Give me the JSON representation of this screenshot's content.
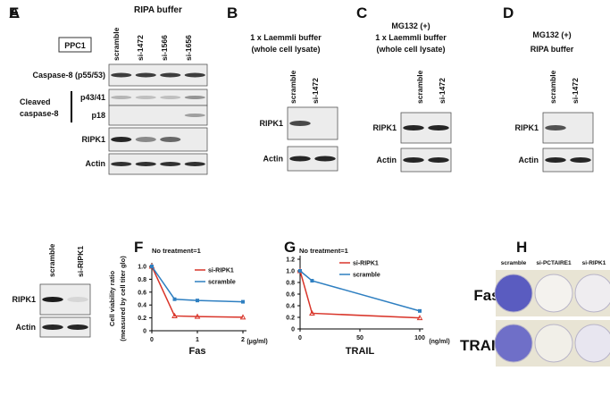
{
  "panels": {
    "A": {
      "label": "A",
      "title": "RIPA buffer",
      "cell_line": "PPC1",
      "lanes": [
        "scramble",
        "si-1472",
        "si-1566",
        "si-1656"
      ],
      "rows": [
        "Caspase-8 (p55/53)",
        "p43/41",
        "p18",
        "RIPK1",
        "Actin"
      ],
      "group_label": [
        "Cleaved",
        "caspase-8"
      ]
    },
    "B": {
      "label": "B",
      "title": [
        "1 x Laemmli buffer",
        "(whole cell lysate)"
      ],
      "lanes": [
        "scramble",
        "si-1472"
      ],
      "rows": [
        "RIPK1",
        "Actin"
      ]
    },
    "C": {
      "label": "C",
      "title": [
        "MG132 (+)",
        "1 x Laemmli buffer",
        "(whole cell lysate)"
      ],
      "lanes": [
        "scramble",
        "si-1472"
      ],
      "rows": [
        "RIPK1",
        "Actin"
      ]
    },
    "D": {
      "label": "D",
      "title": [
        "MG132 (+)",
        "RIPA buffer"
      ],
      "lanes": [
        "scramble",
        "si-1472"
      ],
      "rows": [
        "RIPK1",
        "Actin"
      ]
    },
    "E": {
      "label": "E",
      "lanes": [
        "scramble",
        "si-RIPK1"
      ],
      "rows": [
        "RIPK1",
        "Actin"
      ]
    },
    "H": {
      "label": "H",
      "columns": [
        "scramble",
        "si-PCTAIRE1",
        "si-RIPK1"
      ],
      "rows": [
        "Fas",
        "TRAIL"
      ]
    }
  },
  "chart_data": [
    {
      "type": "line",
      "panel_label": "F",
      "annotation": "No treatment=1",
      "xlabel": "Fas",
      "x_unit": "(μg/ml)",
      "ylabel": [
        "Cell viability ratio",
        "(measured by cell titer glo)"
      ],
      "x": [
        0,
        0.5,
        1,
        2
      ],
      "xlim": [
        0,
        2
      ],
      "xticks": [
        0,
        1,
        2
      ],
      "ylim": [
        0,
        1
      ],
      "yticks": [
        0,
        0.2,
        0.4,
        0.6,
        0.8,
        {
          "value": 1,
          "label": "1.0"
        }
      ],
      "series": [
        {
          "name": "si-RIPK1",
          "color": "#d9352a",
          "values": [
            1,
            0.23,
            0.22,
            0.21
          ]
        },
        {
          "name": "scramble",
          "color": "#2e7fc1",
          "values": [
            1,
            0.49,
            0.47,
            0.45
          ]
        }
      ]
    },
    {
      "type": "line",
      "panel_label": "G",
      "annotation": "No treatment=1",
      "xlabel": "TRAIL",
      "x_unit": "(ng/ml)",
      "x": [
        0,
        10,
        100
      ],
      "xlim": [
        0,
        100
      ],
      "xticks": [
        0,
        50,
        100
      ],
      "ylim": [
        0,
        1.2
      ],
      "yticks": [
        0,
        0.2,
        0.4,
        0.6,
        0.8,
        {
          "value": 1,
          "label": "1.0"
        },
        1.2
      ],
      "series": [
        {
          "name": "si-RIPK1",
          "color": "#d9352a",
          "values": [
            1,
            0.27,
            0.19
          ]
        },
        {
          "name": "scramble",
          "color": "#2e7fc1",
          "values": [
            1,
            0.83,
            0.31
          ]
        }
      ]
    }
  ]
}
